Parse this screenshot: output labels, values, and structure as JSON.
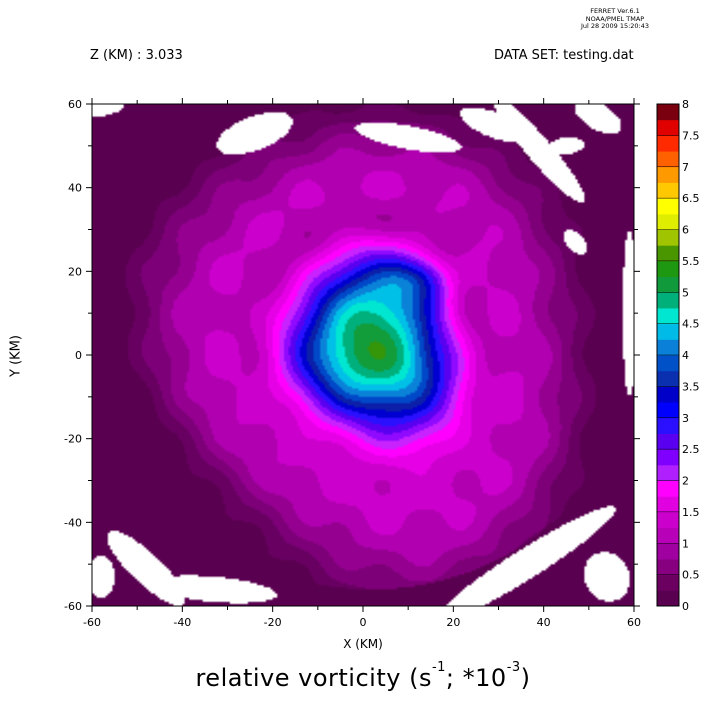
{
  "header": {
    "ferret_lines": [
      "FERRET Ver.6.1",
      "NOAA/PMEL TMAP",
      "Jul 28 2009 15:20:43"
    ],
    "z_label": "Z (KM) : 3.033",
    "dataset_label": "DATA SET: testing.dat"
  },
  "chart_data": {
    "type": "heatmap",
    "title": "relative vorticity",
    "title_units": "(s",
    "title_exp1": "-1",
    "title_mid": "; *10",
    "title_exp2": "-3",
    "title_end": ")",
    "xlabel": "X (KM)",
    "ylabel": "Y (KM)",
    "xlim": [
      -60,
      60
    ],
    "ylim": [
      -60,
      60
    ],
    "x_ticks": [
      -60,
      -40,
      -20,
      0,
      20,
      40,
      60
    ],
    "y_ticks": [
      -60,
      -40,
      -20,
      0,
      20,
      40,
      60
    ],
    "colorbar": {
      "levels": [
        0,
        0.5,
        1,
        1.5,
        2,
        2.5,
        3,
        3.5,
        4,
        4.5,
        5,
        5.5,
        6,
        6.5,
        7,
        7.5,
        8
      ],
      "labels": [
        "0",
        "0.5",
        "1",
        "1.5",
        "2",
        "2.5",
        "3",
        "3.5",
        "4",
        "4.5",
        "5",
        "5.5",
        "6",
        "6.5",
        "7",
        "7.5",
        "8"
      ],
      "colors": [
        "#5a0050",
        "#7a007a",
        "#aa00aa",
        "#dd00dd",
        "#ff00ff",
        "#9a10ff",
        "#5500ee",
        "#1010ff",
        "#0000c0",
        "#0a2fb0",
        "#0050c8",
        "#0a80d8",
        "#00bfe6",
        "#00e3d3",
        "#00b37a",
        "#00906a",
        "#20a000",
        "#4a9600",
        "#a8c800",
        "#d8e600",
        "#ffff00",
        "#ffd000",
        "#ff9900",
        "#ff6a00",
        "#ff3000",
        "#ff0000",
        "#cc0000",
        "#a00000",
        "#7a0000",
        "#5a0010"
      ]
    },
    "field": {
      "description_levels": [
        0.5,
        0.75,
        1.0,
        1.25,
        1.5,
        1.75,
        2.0,
        2.25,
        2.5,
        2.75,
        3.0,
        3.25,
        3.5,
        3.75,
        4.0,
        4.25,
        4.5,
        4.75,
        5.0,
        5.25,
        5.5
      ]
    }
  }
}
